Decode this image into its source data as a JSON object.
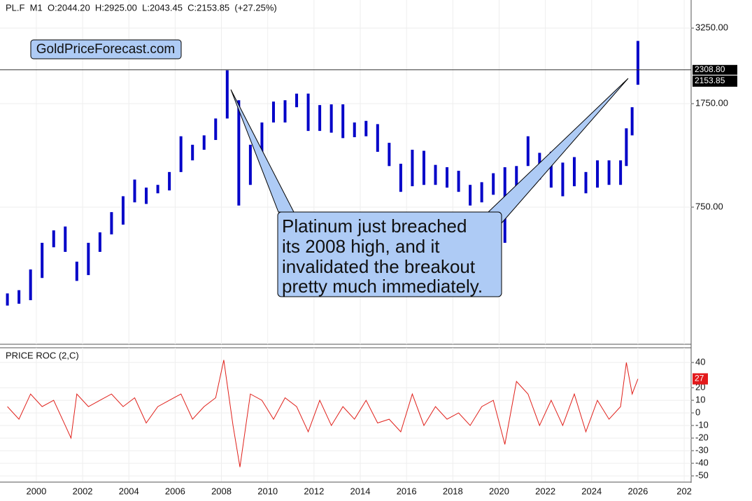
{
  "chart_data": [
    {
      "type": "ohlc",
      "title": "PL.F  M1  O:2044.20  H:2925.00  L:2043.45  C:2153.85  (+27.25%)",
      "watermark": "GoldPriceForecast.com",
      "annotation_lines": [
        "Platinum just breached",
        "its 2008 high, and it",
        "invalidated the breakout",
        "pretty much immediately."
      ],
      "color": "#0000c8",
      "log_scale": true,
      "grid": true,
      "x": [
        1998.75,
        1999.25,
        1999.75,
        2000.25,
        2000.75,
        2001.25,
        2001.75,
        2002.25,
        2002.75,
        2003.25,
        2003.75,
        2004.25,
        2004.75,
        2005.25,
        2005.75,
        2006.25,
        2006.75,
        2007.25,
        2007.75,
        2008.25,
        2008.75,
        2009.25,
        2009.75,
        2010.25,
        2010.75,
        2011.25,
        2011.75,
        2012.25,
        2012.75,
        2013.25,
        2013.75,
        2014.25,
        2014.75,
        2015.25,
        2015.75,
        2016.25,
        2016.75,
        2017.25,
        2017.75,
        2018.25,
        2018.75,
        2019.25,
        2019.75,
        2020.25,
        2020.75,
        2021.25,
        2021.75,
        2022.25,
        2022.75,
        2023.25,
        2023.75,
        2024.25,
        2024.75,
        2025.25,
        2025.5,
        2025.75,
        2026.0
      ],
      "high": [
        370,
        380,
        450,
        560,
        620,
        640,
        480,
        560,
        610,
        720,
        820,
        940,
        880,
        900,
        1000,
        1340,
        1250,
        1350,
        1550,
        2300,
        1800,
        1250,
        1500,
        1780,
        1800,
        1900,
        1900,
        1730,
        1740,
        1740,
        1500,
        1520,
        1480,
        1270,
        1070,
        1200,
        1190,
        1060,
        1040,
        1010,
        900,
        920,
        990,
        1040,
        1050,
        1340,
        1170,
        1180,
        1080,
        1130,
        1000,
        1100,
        1100,
        1100,
        1430,
        1700,
        2925
      ],
      "low": [
        335,
        340,
        350,
        420,
        540,
        520,
        410,
        430,
        520,
        600,
        650,
        780,
        770,
        840,
        860,
        1000,
        1100,
        1200,
        1300,
        1550,
        760,
        900,
        1180,
        1500,
        1500,
        1700,
        1400,
        1400,
        1380,
        1320,
        1330,
        1340,
        1180,
        1050,
        850,
        890,
        900,
        900,
        880,
        850,
        760,
        780,
        830,
        560,
        830,
        1050,
        940,
        880,
        820,
        890,
        840,
        880,
        900,
        900,
        1050,
        1350,
        2043
      ],
      "level_line": {
        "value": 2308.8,
        "label": "2308.80"
      },
      "last_price": {
        "value": 2153.85,
        "label": "2153.85"
      },
      "xlim": [
        1998.43,
        2028.3
      ],
      "ylim": [
        244,
        4090
      ],
      "yticks": [
        {
          "value": 750,
          "label": "750.00"
        },
        {
          "value": 1750,
          "label": "1750.00"
        },
        {
          "value": 3250,
          "label": "3250.00"
        }
      ],
      "xticks": [
        2000,
        2002,
        2004,
        2006,
        2008,
        2010,
        2012,
        2014,
        2016,
        2018,
        2020,
        2022,
        2024,
        2026,
        {
          "value": 2028,
          "label": "202"
        }
      ]
    },
    {
      "type": "line",
      "title": "PRICE ROC (2,C)",
      "color": "#e0201a",
      "grid": true,
      "x": [
        1998.75,
        1999.25,
        1999.75,
        2000.25,
        2000.75,
        2001.25,
        2001.5,
        2001.75,
        2002.25,
        2002.75,
        2003.25,
        2003.75,
        2004.25,
        2004.75,
        2005.25,
        2005.75,
        2006.25,
        2006.75,
        2007.25,
        2007.75,
        2008.1,
        2008.5,
        2008.8,
        2009.25,
        2009.75,
        2010.25,
        2010.75,
        2011.25,
        2011.75,
        2012.25,
        2012.75,
        2013.25,
        2013.75,
        2014.25,
        2014.75,
        2015.25,
        2015.75,
        2016.25,
        2016.75,
        2017.25,
        2017.75,
        2018.25,
        2018.75,
        2019.25,
        2019.75,
        2020.25,
        2020.75,
        2021.25,
        2021.75,
        2022.25,
        2022.75,
        2023.25,
        2023.75,
        2024.25,
        2024.75,
        2025.25,
        2025.5,
        2025.75,
        2026.0
      ],
      "values": [
        5,
        -5,
        15,
        5,
        10,
        -10,
        -20,
        15,
        5,
        10,
        15,
        5,
        12,
        -8,
        5,
        10,
        15,
        -5,
        5,
        12,
        42,
        -10,
        -43,
        15,
        10,
        -5,
        12,
        5,
        -15,
        10,
        -10,
        5,
        -5,
        10,
        -8,
        -5,
        -15,
        15,
        -10,
        5,
        -5,
        0,
        -10,
        5,
        10,
        -25,
        25,
        15,
        -10,
        10,
        -10,
        15,
        -15,
        10,
        -5,
        5,
        40,
        15,
        27
      ],
      "last_value": 27,
      "xlim": [
        1998.43,
        2028.3
      ],
      "ylim": [
        -54.4,
        51.7
      ],
      "yticks": [
        40,
        20,
        10,
        0,
        -10,
        -20,
        -30,
        -40,
        -50
      ]
    }
  ]
}
